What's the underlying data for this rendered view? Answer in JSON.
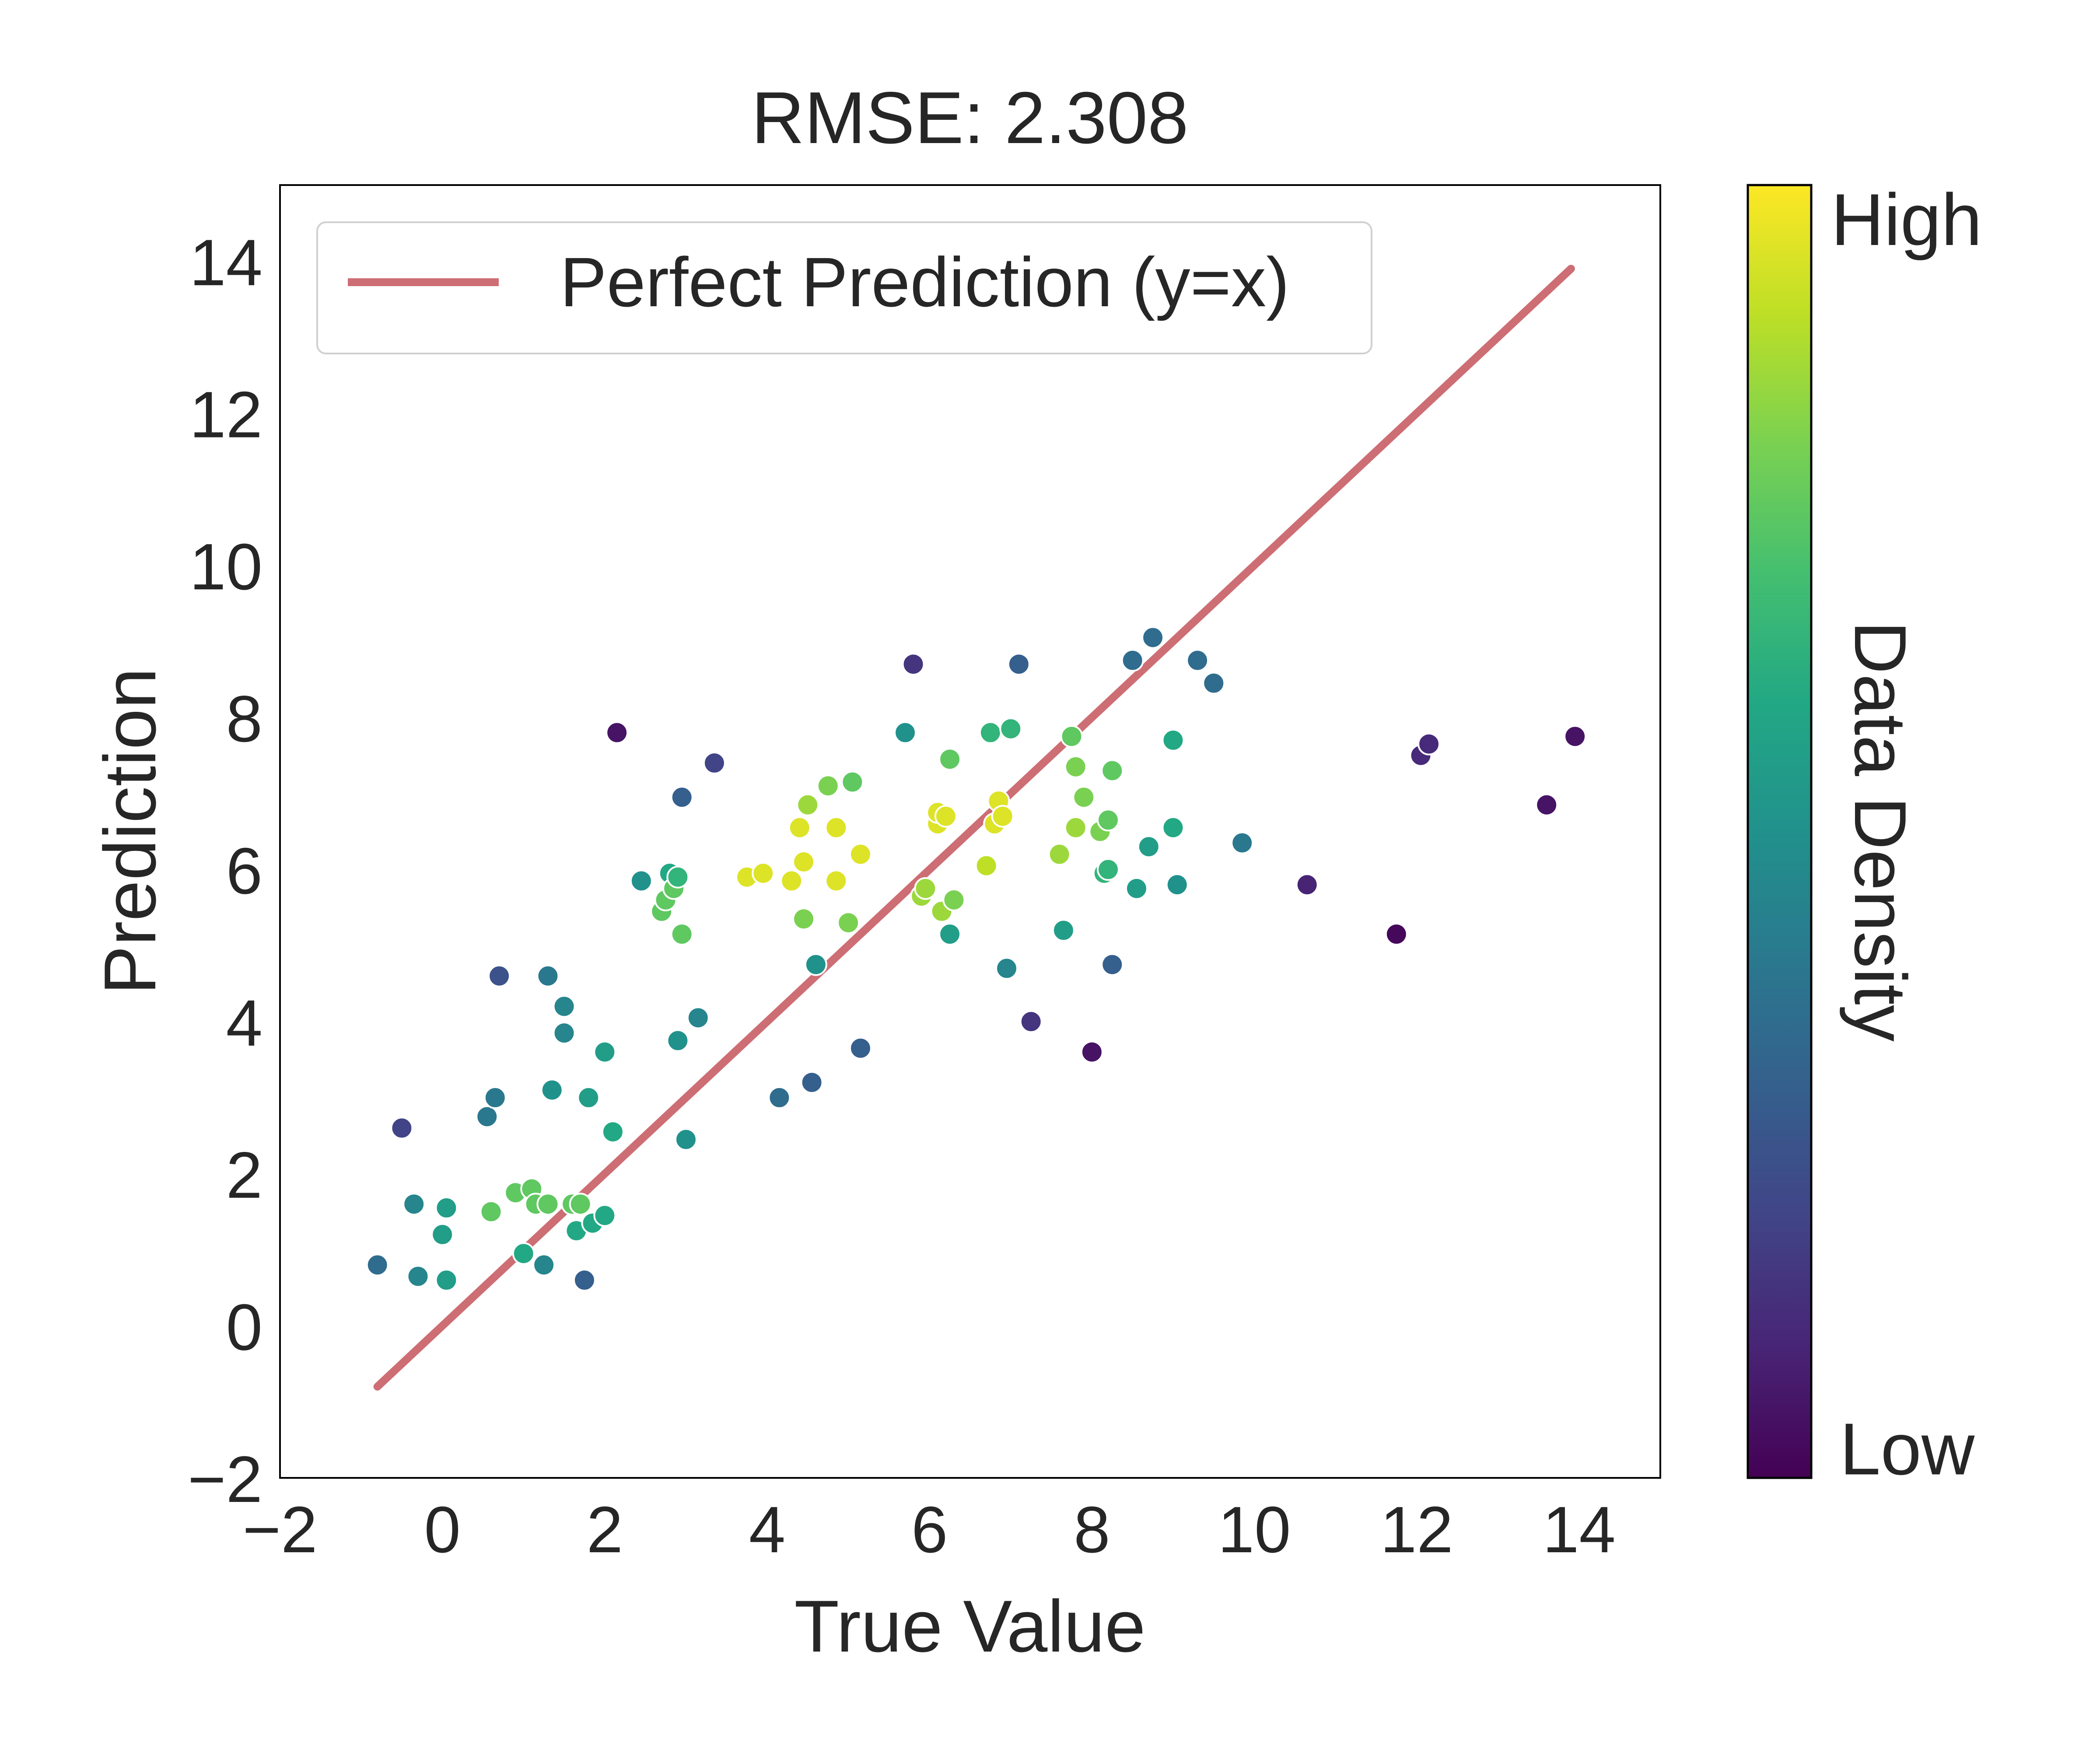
{
  "chart_data": {
    "type": "scatter",
    "title": "RMSE: 2.308",
    "xlabel": "True Value",
    "ylabel": "Prediction",
    "xlim": [
      -2,
      15
    ],
    "ylim": [
      -2,
      15
    ],
    "xticks": [
      -2,
      0,
      2,
      4,
      6,
      8,
      10,
      12,
      14
    ],
    "yticks": [
      -2,
      0,
      2,
      4,
      6,
      8,
      10,
      12,
      14
    ],
    "grid": false,
    "legend": {
      "position": "top-left",
      "label": "Perfect Prediction (y=x)"
    },
    "reference_line": {
      "label": "Perfect Prediction (y=x)",
      "x": [
        -0.8,
        13.9
      ],
      "y": [
        -0.8,
        13.9
      ],
      "color": "#cd6e74"
    },
    "colorbar": {
      "label": "Data Density",
      "high_label": "High",
      "low_label": "Low",
      "colormap": "viridis"
    },
    "points": [
      [
        -0.8,
        0.8,
        0.35
      ],
      [
        -0.5,
        2.6,
        0.2
      ],
      [
        -0.35,
        1.6,
        0.45
      ],
      [
        -0.3,
        0.65,
        0.45
      ],
      [
        0.0,
        1.2,
        0.55
      ],
      [
        0.05,
        1.55,
        0.55
      ],
      [
        0.05,
        0.6,
        0.55
      ],
      [
        0.55,
        2.75,
        0.4
      ],
      [
        0.6,
        1.5,
        0.75
      ],
      [
        0.65,
        3.0,
        0.4
      ],
      [
        0.7,
        4.6,
        0.25
      ],
      [
        0.9,
        1.75,
        0.75
      ],
      [
        1.0,
        0.95,
        0.6
      ],
      [
        1.1,
        1.8,
        0.75
      ],
      [
        1.15,
        1.6,
        0.75
      ],
      [
        1.25,
        0.8,
        0.45
      ],
      [
        1.3,
        1.6,
        0.75
      ],
      [
        1.3,
        4.6,
        0.4
      ],
      [
        1.35,
        3.1,
        0.5
      ],
      [
        1.5,
        4.2,
        0.45
      ],
      [
        1.5,
        3.85,
        0.45
      ],
      [
        1.6,
        1.6,
        0.75
      ],
      [
        1.65,
        1.25,
        0.6
      ],
      [
        1.7,
        1.6,
        0.75
      ],
      [
        1.75,
        0.6,
        0.3
      ],
      [
        1.8,
        3.0,
        0.55
      ],
      [
        1.85,
        1.35,
        0.6
      ],
      [
        2.0,
        1.45,
        0.6
      ],
      [
        2.0,
        3.6,
        0.55
      ],
      [
        2.1,
        2.55,
        0.6
      ],
      [
        2.15,
        7.8,
        0.05
      ],
      [
        2.45,
        5.85,
        0.5
      ],
      [
        2.7,
        5.45,
        0.75
      ],
      [
        2.75,
        5.6,
        0.75
      ],
      [
        2.8,
        5.95,
        0.6
      ],
      [
        2.85,
        5.75,
        0.75
      ],
      [
        2.9,
        3.75,
        0.5
      ],
      [
        2.9,
        5.9,
        0.65
      ],
      [
        2.95,
        6.95,
        0.3
      ],
      [
        2.95,
        5.15,
        0.75
      ],
      [
        3.0,
        2.45,
        0.5
      ],
      [
        3.15,
        4.05,
        0.45
      ],
      [
        3.35,
        7.4,
        0.2
      ],
      [
        3.75,
        5.9,
        0.95
      ],
      [
        3.95,
        5.95,
        0.95
      ],
      [
        4.15,
        3.0,
        0.35
      ],
      [
        4.3,
        5.85,
        0.95
      ],
      [
        4.4,
        6.55,
        0.95
      ],
      [
        4.45,
        6.1,
        0.95
      ],
      [
        4.45,
        5.35,
        0.8
      ],
      [
        4.5,
        6.85,
        0.85
      ],
      [
        4.55,
        3.2,
        0.3
      ],
      [
        4.6,
        4.75,
        0.5
      ],
      [
        4.75,
        7.1,
        0.8
      ],
      [
        4.85,
        5.85,
        0.95
      ],
      [
        4.85,
        6.55,
        0.95
      ],
      [
        5.0,
        5.3,
        0.8
      ],
      [
        5.05,
        7.15,
        0.75
      ],
      [
        5.15,
        6.2,
        0.95
      ],
      [
        5.15,
        3.65,
        0.3
      ],
      [
        5.7,
        7.8,
        0.5
      ],
      [
        5.8,
        8.7,
        0.15
      ],
      [
        5.9,
        5.65,
        0.85
      ],
      [
        5.95,
        5.75,
        0.85
      ],
      [
        6.1,
        6.6,
        0.95
      ],
      [
        6.1,
        6.75,
        0.95
      ],
      [
        6.15,
        5.45,
        0.85
      ],
      [
        6.2,
        6.7,
        0.95
      ],
      [
        6.25,
        7.45,
        0.75
      ],
      [
        6.25,
        5.15,
        0.55
      ],
      [
        6.3,
        5.6,
        0.8
      ],
      [
        6.7,
        6.05,
        0.9
      ],
      [
        6.75,
        7.8,
        0.65
      ],
      [
        6.8,
        6.6,
        0.95
      ],
      [
        6.85,
        6.9,
        0.95
      ],
      [
        6.9,
        6.7,
        0.95
      ],
      [
        6.95,
        4.7,
        0.45
      ],
      [
        7.0,
        7.85,
        0.65
      ],
      [
        7.1,
        8.7,
        0.3
      ],
      [
        7.25,
        4.0,
        0.15
      ],
      [
        7.6,
        6.2,
        0.85
      ],
      [
        7.65,
        5.2,
        0.55
      ],
      [
        7.75,
        7.75,
        0.75
      ],
      [
        7.8,
        7.35,
        0.8
      ],
      [
        7.8,
        6.55,
        0.85
      ],
      [
        7.9,
        6.95,
        0.8
      ],
      [
        8.0,
        3.6,
        0.05
      ],
      [
        8.1,
        6.5,
        0.8
      ],
      [
        8.15,
        5.95,
        0.65
      ],
      [
        8.2,
        6.65,
        0.75
      ],
      [
        8.2,
        6.0,
        0.65
      ],
      [
        8.25,
        7.3,
        0.75
      ],
      [
        8.25,
        4.75,
        0.3
      ],
      [
        8.5,
        8.75,
        0.35
      ],
      [
        8.55,
        5.75,
        0.55
      ],
      [
        8.7,
        6.3,
        0.55
      ],
      [
        8.75,
        9.05,
        0.35
      ],
      [
        9.0,
        7.7,
        0.6
      ],
      [
        9.0,
        6.55,
        0.6
      ],
      [
        9.05,
        5.8,
        0.5
      ],
      [
        9.3,
        8.75,
        0.35
      ],
      [
        9.5,
        8.45,
        0.35
      ],
      [
        9.85,
        6.35,
        0.4
      ],
      [
        10.65,
        5.8,
        0.1
      ],
      [
        11.75,
        5.15,
        0.02
      ],
      [
        12.05,
        7.5,
        0.12
      ],
      [
        12.15,
        7.65,
        0.12
      ],
      [
        13.6,
        6.85,
        0.05
      ],
      [
        13.95,
        7.75,
        0.05
      ]
    ]
  }
}
